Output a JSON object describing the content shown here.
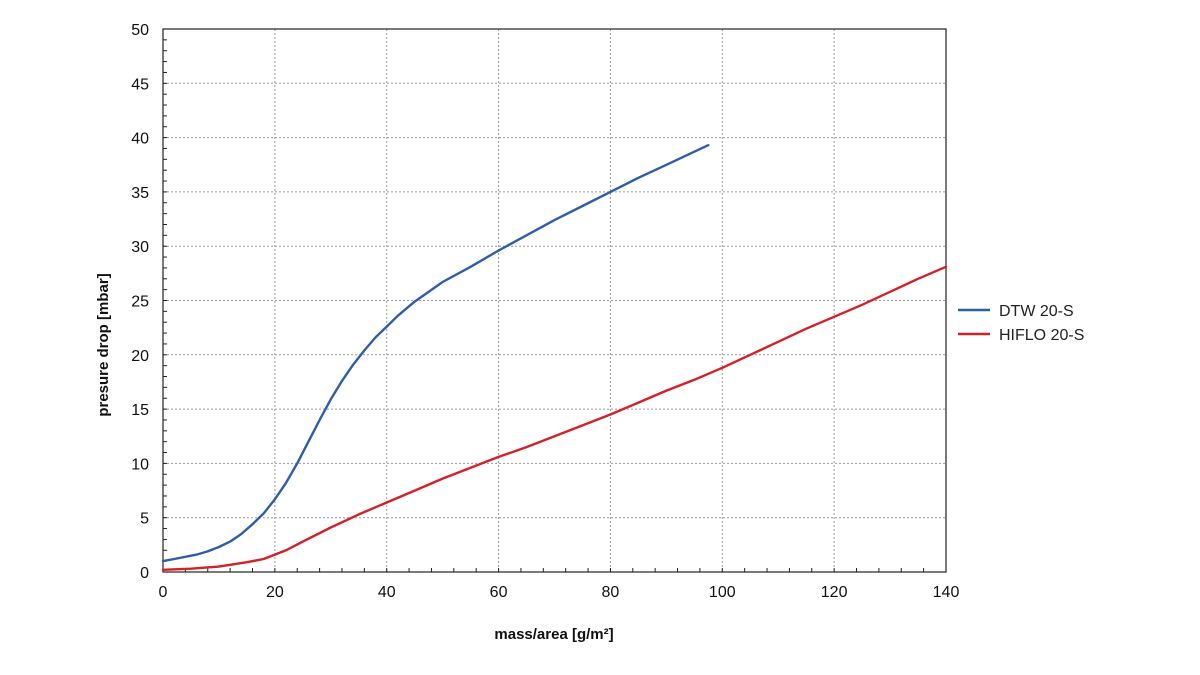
{
  "chart_data": {
    "type": "line",
    "title": "",
    "xlabel": "mass/area [g/m²]",
    "ylabel": "presure drop [mbar]",
    "xlim": [
      0,
      140
    ],
    "ylim": [
      0,
      50
    ],
    "x_ticks": [
      0,
      20,
      40,
      60,
      80,
      100,
      120,
      140
    ],
    "y_ticks": [
      0,
      5,
      10,
      15,
      20,
      25,
      30,
      35,
      40,
      45,
      50
    ],
    "grid": true,
    "legend_position": "right",
    "series": [
      {
        "name": "DTW 20-S",
        "color": "#2f5da8",
        "points": [
          [
            0,
            1.0
          ],
          [
            2,
            1.2
          ],
          [
            4,
            1.4
          ],
          [
            6,
            1.6
          ],
          [
            8,
            1.9
          ],
          [
            10,
            2.3
          ],
          [
            12,
            2.8
          ],
          [
            14,
            3.5
          ],
          [
            16,
            4.4
          ],
          [
            18,
            5.4
          ],
          [
            20,
            6.7
          ],
          [
            22,
            8.2
          ],
          [
            24,
            10.0
          ],
          [
            26,
            12.0
          ],
          [
            28,
            14.0
          ],
          [
            30,
            15.9
          ],
          [
            32,
            17.6
          ],
          [
            34,
            19.1
          ],
          [
            36,
            20.4
          ],
          [
            38,
            21.6
          ],
          [
            40,
            22.6
          ],
          [
            42,
            23.6
          ],
          [
            45,
            24.9
          ],
          [
            50,
            26.7
          ],
          [
            55,
            28.1
          ],
          [
            60,
            29.6
          ],
          [
            65,
            31.0
          ],
          [
            70,
            32.4
          ],
          [
            75,
            33.7
          ],
          [
            80,
            35.0
          ],
          [
            85,
            36.3
          ],
          [
            90,
            37.5
          ],
          [
            95,
            38.7
          ],
          [
            97.5,
            39.3
          ]
        ]
      },
      {
        "name": "HIFLO 20-S",
        "color": "#d42027",
        "points": [
          [
            0,
            0.2
          ],
          [
            5,
            0.3
          ],
          [
            10,
            0.5
          ],
          [
            15,
            0.9
          ],
          [
            18,
            1.2
          ],
          [
            20,
            1.6
          ],
          [
            22,
            2.0
          ],
          [
            25,
            2.8
          ],
          [
            30,
            4.1
          ],
          [
            35,
            5.3
          ],
          [
            40,
            6.4
          ],
          [
            45,
            7.5
          ],
          [
            50,
            8.6
          ],
          [
            55,
            9.6
          ],
          [
            60,
            10.6
          ],
          [
            65,
            11.5
          ],
          [
            70,
            12.5
          ],
          [
            75,
            13.5
          ],
          [
            80,
            14.5
          ],
          [
            85,
            15.6
          ],
          [
            90,
            16.7
          ],
          [
            95,
            17.7
          ],
          [
            100,
            18.8
          ],
          [
            105,
            20.0
          ],
          [
            110,
            21.2
          ],
          [
            115,
            22.4
          ],
          [
            120,
            23.5
          ],
          [
            125,
            24.6
          ],
          [
            130,
            25.8
          ],
          [
            135,
            27.0
          ],
          [
            140,
            28.1
          ]
        ]
      }
    ]
  }
}
